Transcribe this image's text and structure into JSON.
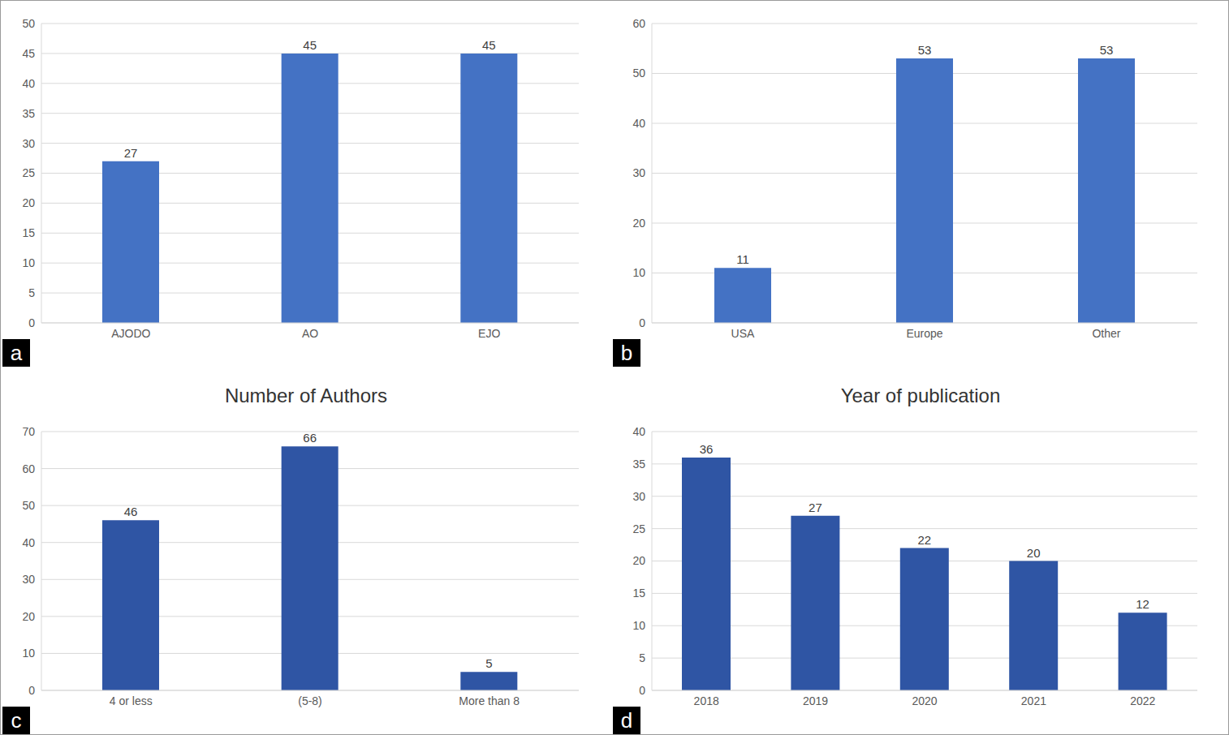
{
  "chart_data": [
    {
      "type": "bar",
      "annotation": "a",
      "categories": [
        "AJODO",
        "AO",
        "EJO"
      ],
      "values": [
        27,
        45,
        45
      ],
      "color": "#4472c4",
      "ylim": [
        0,
        50
      ],
      "yticks": [
        0,
        5,
        10,
        15,
        20,
        25,
        30,
        35,
        40,
        45,
        50
      ],
      "grid": true,
      "data_labels": true
    },
    {
      "type": "bar",
      "annotation": "b",
      "categories": [
        "USA",
        "Europe",
        "Other"
      ],
      "values": [
        11,
        53,
        53
      ],
      "color": "#4472c4",
      "ylim": [
        0,
        60
      ],
      "yticks": [
        0,
        10,
        20,
        30,
        40,
        50,
        60
      ],
      "grid": true,
      "data_labels": true
    },
    {
      "type": "bar",
      "annotation": "c",
      "title": "Number of Authors",
      "categories": [
        "4 or less",
        "(5-8)",
        "More than 8"
      ],
      "values": [
        46,
        66,
        5
      ],
      "color": "#2f55a4",
      "ylim": [
        0,
        70
      ],
      "yticks": [
        0,
        10,
        20,
        30,
        40,
        50,
        60,
        70
      ],
      "grid": true,
      "data_labels": true
    },
    {
      "type": "bar",
      "annotation": "d",
      "title": "Year of publication",
      "categories": [
        "2018",
        "2019",
        "2020",
        "2021",
        "2022"
      ],
      "values": [
        36,
        27,
        22,
        20,
        12
      ],
      "color": "#2f55a4",
      "ylim": [
        0,
        40
      ],
      "yticks": [
        0,
        5,
        10,
        15,
        20,
        25,
        30,
        35,
        40
      ],
      "grid": true,
      "data_labels": true
    }
  ]
}
